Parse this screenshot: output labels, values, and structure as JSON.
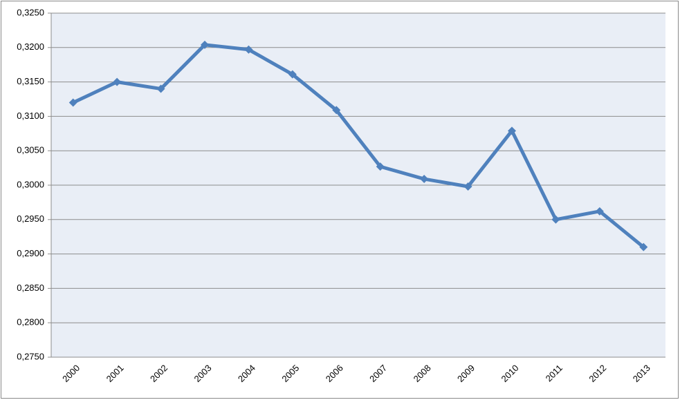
{
  "chart_data": {
    "type": "line",
    "categories": [
      "2000",
      "2001",
      "2002",
      "2003",
      "2004",
      "2005",
      "2006",
      "2007",
      "2008",
      "2009",
      "2010",
      "2011",
      "2012",
      "2013"
    ],
    "series": [
      {
        "color": "#4f81bd",
        "values": [
          0.312,
          0.315,
          0.314,
          0.3204,
          0.3197,
          0.3161,
          0.3109,
          0.3027,
          0.3009,
          0.2998,
          0.3079,
          0.295,
          0.2962,
          0.291
        ]
      }
    ],
    "ylim": [
      0.275,
      0.325
    ],
    "yticks": [
      {
        "value": 0.275,
        "label": "0,2750"
      },
      {
        "value": 0.28,
        "label": "0,2800"
      },
      {
        "value": 0.285,
        "label": "0,2850"
      },
      {
        "value": 0.29,
        "label": "0,2900"
      },
      {
        "value": 0.295,
        "label": "0,2950"
      },
      {
        "value": 0.3,
        "label": "0,3000"
      },
      {
        "value": 0.305,
        "label": "0,3050"
      },
      {
        "value": 0.31,
        "label": "0,3100"
      },
      {
        "value": 0.315,
        "label": "0,3150"
      },
      {
        "value": 0.32,
        "label": "0,3200"
      },
      {
        "value": 0.325,
        "label": "0,3250"
      }
    ],
    "grid": true
  }
}
